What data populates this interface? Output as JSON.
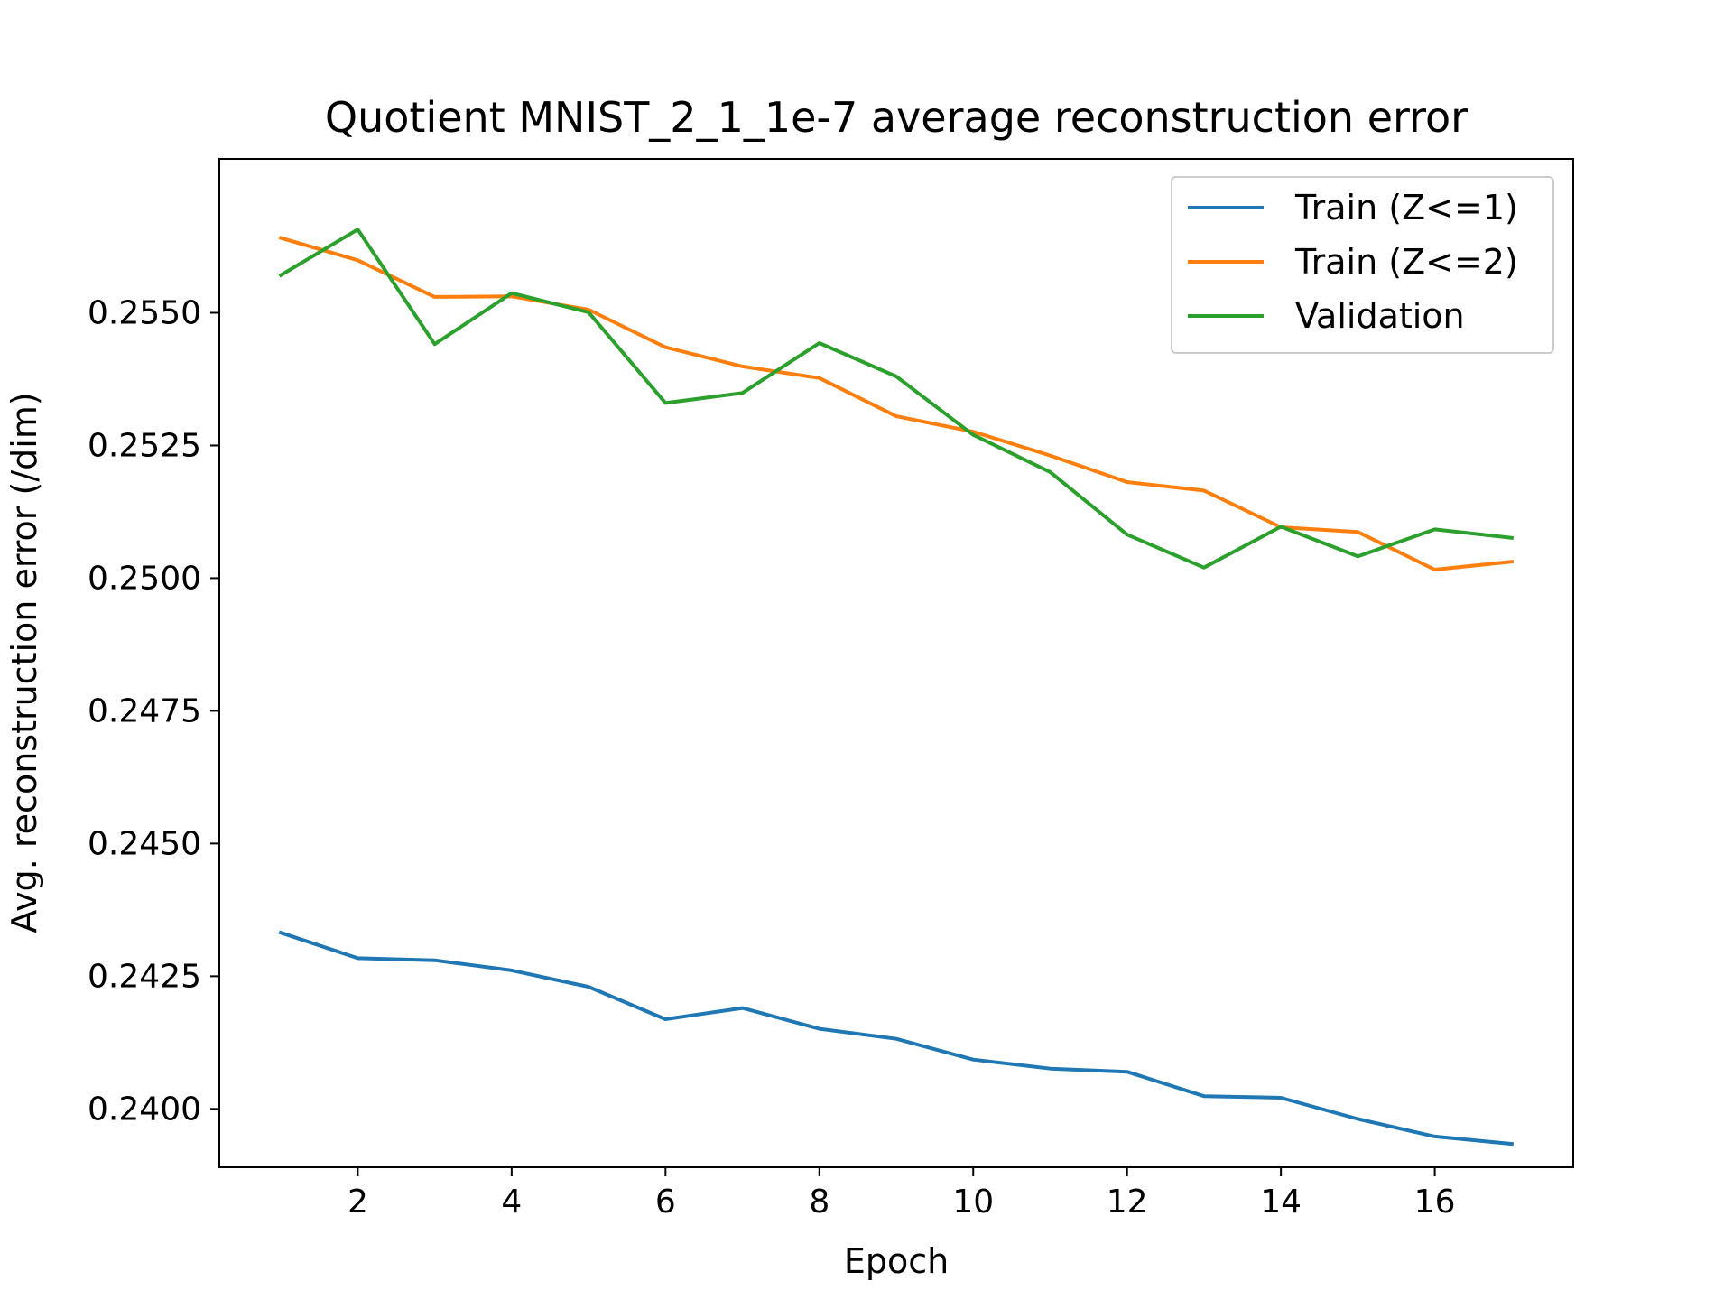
{
  "chart_data": {
    "type": "line",
    "title": "Quotient MNIST_2_1_1e-7 average reconstruction error",
    "xlabel": "Epoch",
    "ylabel": "Avg. reconstruction error (/dim)",
    "x": [
      1,
      2,
      3,
      4,
      5,
      6,
      7,
      8,
      9,
      10,
      11,
      12,
      13,
      14,
      15,
      16,
      17
    ],
    "xlim": [
      0.2,
      17.8
    ],
    "ylim": [
      0.2389,
      0.2579
    ],
    "xticks": [
      2,
      4,
      6,
      8,
      10,
      12,
      14,
      16
    ],
    "xtick_labels": [
      "2",
      "4",
      "6",
      "8",
      "10",
      "12",
      "14",
      "16"
    ],
    "yticks": [
      0.24,
      0.2425,
      0.245,
      0.2475,
      0.25,
      0.2525,
      0.255
    ],
    "ytick_labels": [
      "0.2400",
      "0.2425",
      "0.2450",
      "0.2475",
      "0.2500",
      "0.2525",
      "0.2550"
    ],
    "grid": false,
    "legend_position": "top-right",
    "series": [
      {
        "name": "Train (Z<=1)",
        "color": "#1f77b4",
        "values": [
          0.24332,
          0.24284,
          0.2428,
          0.24261,
          0.2423,
          0.24169,
          0.2419,
          0.24151,
          0.24132,
          0.24093,
          0.24076,
          0.2407,
          0.24024,
          0.24021,
          0.23981,
          0.23948,
          0.23934
        ]
      },
      {
        "name": "Train (Z<=2)",
        "color": "#ff7f0e",
        "values": [
          0.25641,
          0.25599,
          0.2553,
          0.25531,
          0.25506,
          0.25435,
          0.25399,
          0.25377,
          0.25305,
          0.25276,
          0.25231,
          0.25181,
          0.25165,
          0.25096,
          0.25087,
          0.25016,
          0.25031
        ]
      },
      {
        "name": "Validation",
        "color": "#2ca02c",
        "values": [
          0.25571,
          0.25657,
          0.25441,
          0.25537,
          0.25501,
          0.2533,
          0.25349,
          0.25443,
          0.2538,
          0.2527,
          0.252,
          0.25082,
          0.2502,
          0.25097,
          0.25041,
          0.25092,
          0.25076
        ]
      }
    ]
  }
}
